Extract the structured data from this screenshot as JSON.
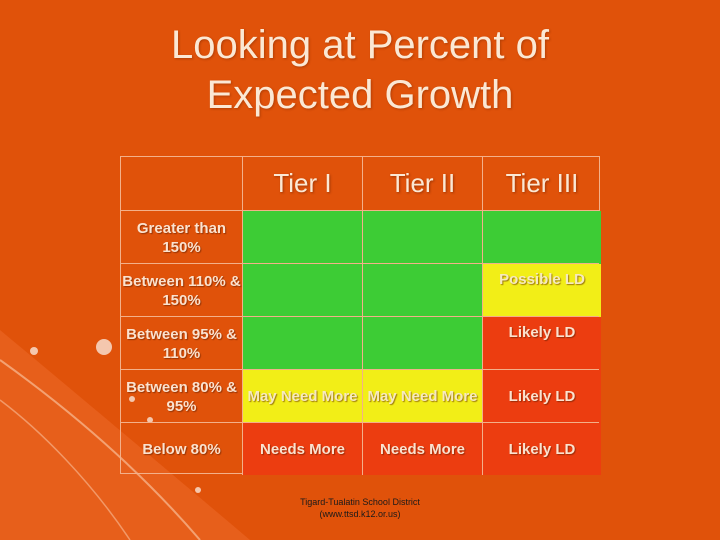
{
  "title": {
    "line1": "Looking at Percent of",
    "line2": "Expected Growth"
  },
  "table": {
    "headers": [
      "",
      "Tier I",
      "Tier II",
      "Tier III"
    ],
    "rows": [
      {
        "label": "Greater than 150%",
        "cells": [
          "",
          "",
          ""
        ]
      },
      {
        "label": "Between 110% & 150%",
        "cells": [
          "",
          "",
          "Possible LD"
        ]
      },
      {
        "label": "Between 95% & 110%",
        "cells": [
          "",
          "",
          "Likely LD"
        ]
      },
      {
        "label": "Between 80% & 95%",
        "cells": [
          "May Need More",
          "May Need More",
          "Likely LD"
        ]
      },
      {
        "label": "Below 80%",
        "cells": [
          "Needs More",
          "Needs More",
          "Likely LD"
        ]
      }
    ]
  },
  "colors": {
    "background": "#e0520a",
    "green": "#3dcc35",
    "yellow": "#f2ee17",
    "red": "#ec3d10"
  },
  "footer": {
    "line1": "Tigard-Tualatin School District",
    "line2": "(www.ttsd.k12.or.us)"
  }
}
